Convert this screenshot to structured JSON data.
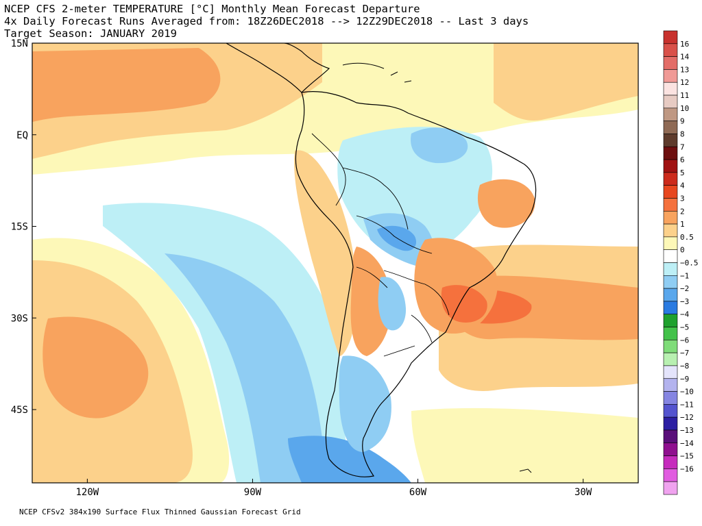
{
  "title": {
    "line1": "NCEP CFS 2-meter TEMPERATURE [°C] Monthly Mean Forecast Departure",
    "line2": "4x Daily Forecast Runs Averaged from: 18Z26DEC2018 --> 12Z29DEC2018 -- Last 3 days",
    "line3": "Target Season: JANUARY 2019"
  },
  "footer": "NCEP CFSv2 384x190 Surface Flux Thinned Gaussian Forecast Grid",
  "map": {
    "lon_range": [
      -130,
      -20
    ],
    "lat_range": [
      -57,
      15
    ],
    "lon_ticks": [
      {
        "value": -120,
        "label": "120W"
      },
      {
        "value": -90,
        "label": "90W"
      },
      {
        "value": -60,
        "label": "60W"
      },
      {
        "value": -30,
        "label": "30W"
      }
    ],
    "lat_ticks": [
      {
        "value": 15,
        "label": "15N"
      },
      {
        "value": 0,
        "label": "EQ"
      },
      {
        "value": -15,
        "label": "15S"
      },
      {
        "value": -30,
        "label": "30S"
      },
      {
        "value": -45,
        "label": "45S"
      }
    ]
  },
  "colorbar": {
    "levels": [
      {
        "label": "16",
        "color": "#c8322e"
      },
      {
        "label": "14",
        "color": "#d9514a"
      },
      {
        "label": "13",
        "color": "#e36d68"
      },
      {
        "label": "12",
        "color": "#f09a96"
      },
      {
        "label": "11",
        "color": "#fbe3e1"
      },
      {
        "label": "10",
        "color": "#e7cbc3"
      },
      {
        "label": "9",
        "color": "#bf9883"
      },
      {
        "label": "8",
        "color": "#8f6a55"
      },
      {
        "label": "7",
        "color": "#5e3b2c"
      },
      {
        "label": "6",
        "color": "#6d0f0f"
      },
      {
        "label": "5",
        "color": "#a01212"
      },
      {
        "label": "4",
        "color": "#cc2b1c"
      },
      {
        "label": "3",
        "color": "#e8471f"
      },
      {
        "label": "2",
        "color": "#f5713d"
      },
      {
        "label": "1",
        "color": "#f8a35e"
      },
      {
        "label": "0.5",
        "color": "#fcd18b"
      },
      {
        "label": "0",
        "color": "#fdf8b8"
      },
      {
        "label": "−0.5",
        "color": "#ffffff"
      },
      {
        "label": "−1",
        "color": "#bdeff6"
      },
      {
        "label": "−2",
        "color": "#8fcdf3"
      },
      {
        "label": "−3",
        "color": "#5aa7ec"
      },
      {
        "label": "−4",
        "color": "#2a7be1"
      },
      {
        "label": "−5",
        "color": "#1fa12e"
      },
      {
        "label": "−6",
        "color": "#43c24a"
      },
      {
        "label": "−7",
        "color": "#7fdc79"
      },
      {
        "label": "−8",
        "color": "#b8f0b1"
      },
      {
        "label": "−9",
        "color": "#e4e4fb"
      },
      {
        "label": "−10",
        "color": "#b3b3ee"
      },
      {
        "label": "−11",
        "color": "#8585e2"
      },
      {
        "label": "−12",
        "color": "#5454cf"
      },
      {
        "label": "−13",
        "color": "#2c1fa3"
      },
      {
        "label": "−14",
        "color": "#5a0f7a"
      },
      {
        "label": "−15",
        "color": "#8f0f8f"
      },
      {
        "label": "−16",
        "color": "#c62bbd"
      },
      {
        "label": "",
        "color": "#e15ce0"
      },
      {
        "label": "",
        "color": "#f0a3ef"
      }
    ]
  },
  "palette": {
    "ocean_warm_light": "#fdf8b8",
    "warm_05": "#fcd18b",
    "warm_1": "#f8a35e",
    "warm_2": "#f5713d",
    "neutral": "#ffffff",
    "cool_05": "#bdeff6",
    "cool_1": "#8fcdf3",
    "cool_2": "#5aa7ec"
  }
}
